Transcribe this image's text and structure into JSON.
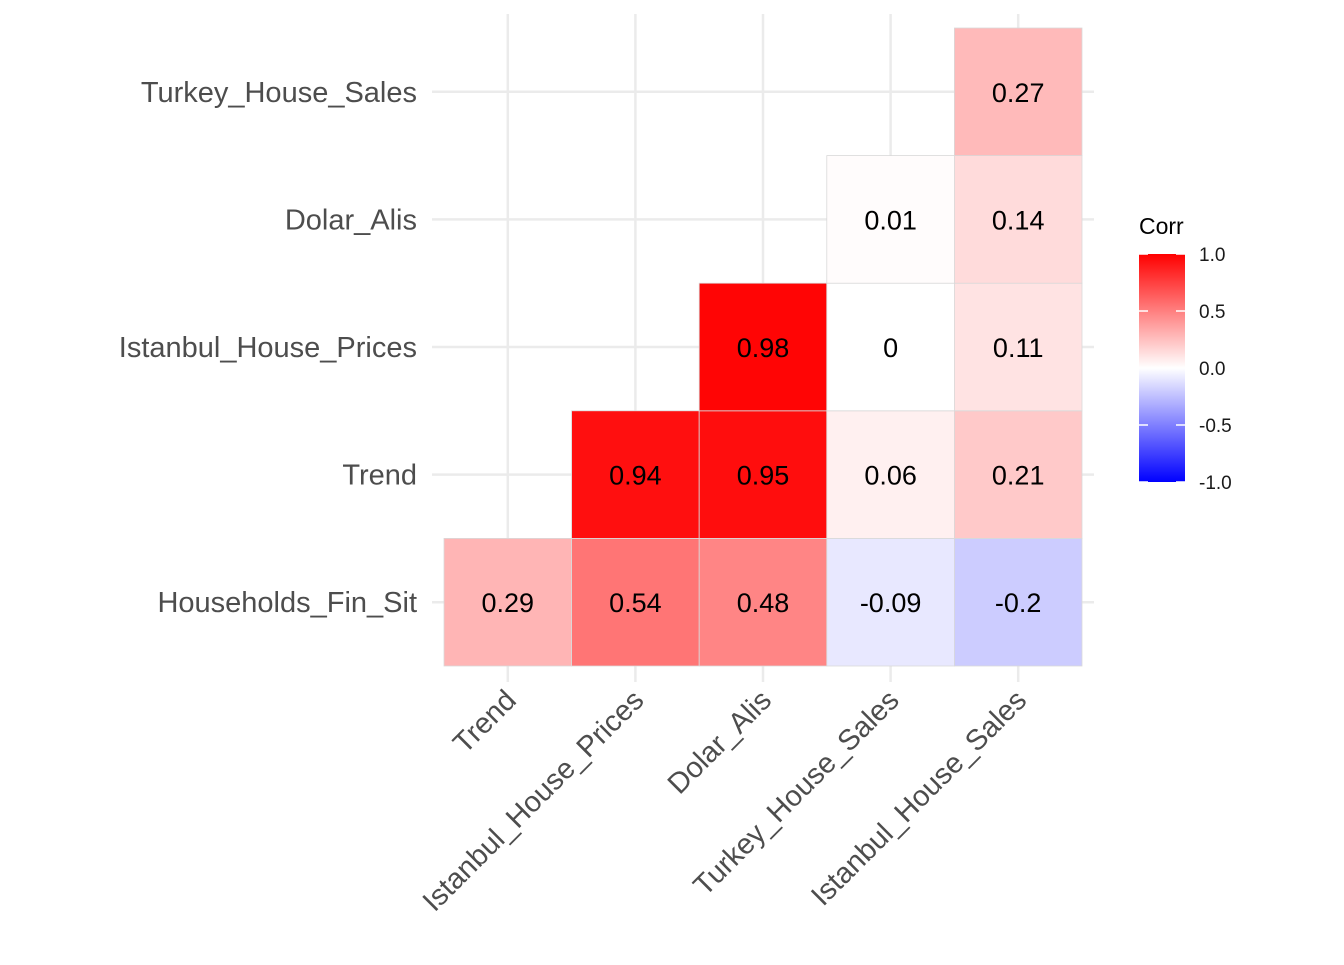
{
  "chart_data": {
    "type": "heatmap",
    "title": "",
    "xlabel": "",
    "ylabel": "",
    "x_categories": [
      "Trend",
      "Istanbul_House_Prices",
      "Dolar_Alis",
      "Turkey_House_Sales",
      "Istanbul_House_Sales"
    ],
    "y_categories": [
      "Households_Fin_Sit",
      "Trend",
      "Istanbul_House_Prices",
      "Dolar_Alis",
      "Turkey_House_Sales"
    ],
    "cells": [
      {
        "x": "Trend",
        "y": "Households_Fin_Sit",
        "value": 0.29,
        "label": "0.29"
      },
      {
        "x": "Istanbul_House_Prices",
        "y": "Households_Fin_Sit",
        "value": 0.54,
        "label": "0.54"
      },
      {
        "x": "Dolar_Alis",
        "y": "Households_Fin_Sit",
        "value": 0.48,
        "label": "0.48"
      },
      {
        "x": "Turkey_House_Sales",
        "y": "Households_Fin_Sit",
        "value": -0.09,
        "label": "-0.09"
      },
      {
        "x": "Istanbul_House_Sales",
        "y": "Households_Fin_Sit",
        "value": -0.2,
        "label": "-0.2"
      },
      {
        "x": "Istanbul_House_Prices",
        "y": "Trend",
        "value": 0.94,
        "label": "0.94"
      },
      {
        "x": "Dolar_Alis",
        "y": "Trend",
        "value": 0.95,
        "label": "0.95"
      },
      {
        "x": "Turkey_House_Sales",
        "y": "Trend",
        "value": 0.06,
        "label": "0.06"
      },
      {
        "x": "Istanbul_House_Sales",
        "y": "Trend",
        "value": 0.21,
        "label": "0.21"
      },
      {
        "x": "Dolar_Alis",
        "y": "Istanbul_House_Prices",
        "value": 0.98,
        "label": "0.98"
      },
      {
        "x": "Turkey_House_Sales",
        "y": "Istanbul_House_Prices",
        "value": 0.0,
        "label": "0"
      },
      {
        "x": "Istanbul_House_Sales",
        "y": "Istanbul_House_Prices",
        "value": 0.11,
        "label": "0.11"
      },
      {
        "x": "Turkey_House_Sales",
        "y": "Dolar_Alis",
        "value": 0.01,
        "label": "0.01"
      },
      {
        "x": "Istanbul_House_Sales",
        "y": "Dolar_Alis",
        "value": 0.14,
        "label": "0.14"
      },
      {
        "x": "Istanbul_House_Sales",
        "y": "Turkey_House_Sales",
        "value": 0.27,
        "label": "0.27"
      }
    ],
    "legend": {
      "title": "Corr",
      "placement": "right",
      "range": [
        -1.0,
        1.0
      ],
      "ticks": [
        {
          "value": 1.0,
          "label": "1.0"
        },
        {
          "value": 0.5,
          "label": "0.5"
        },
        {
          "value": 0.0,
          "label": "0.0"
        },
        {
          "value": -0.5,
          "label": "-0.5"
        },
        {
          "value": -1.0,
          "label": "-1.0"
        }
      ]
    },
    "colors": {
      "high": "#ff0000",
      "mid": "#ffffff",
      "low": "#0000ff",
      "grid": "#ebebeb",
      "cell_outline": "#d9d9d9"
    },
    "grid": true
  }
}
